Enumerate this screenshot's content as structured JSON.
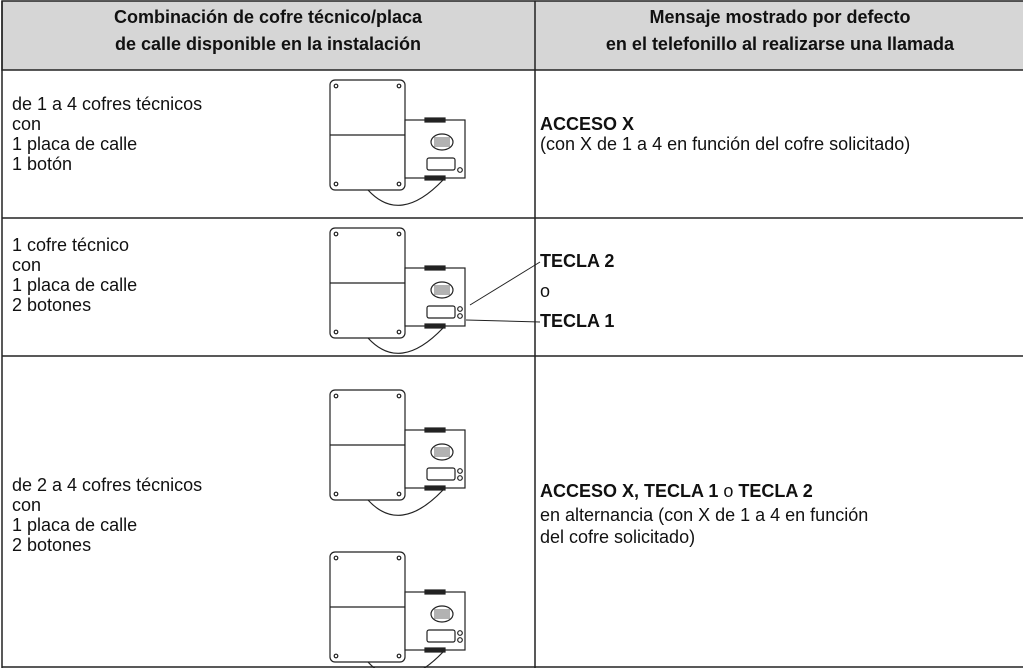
{
  "header": {
    "columns": [
      {
        "lines": [
          "Combinación de cofre técnico/placa",
          "de calle disponible en la instalación"
        ]
      },
      {
        "lines": [
          "Mensaje mostrado por defecto",
          "en el telefonillo al realizarse una llamada"
        ]
      }
    ]
  },
  "rows": [
    {
      "left": [
        "de 1 a 4 cofres técnicos",
        "con",
        "1 placa de calle",
        "1 botón"
      ],
      "right": [
        [
          {
            "text": "ACCESO X",
            "bold": true
          }
        ],
        [
          {
            "text": "(con X de 1 a 4 en función del cofre solicitado)",
            "bold": false
          }
        ]
      ]
    },
    {
      "left": [
        "1 cofre técnico",
        "con",
        "1 placa de calle",
        "2 botones"
      ],
      "right": [
        [
          {
            "text": "TECLA 2",
            "bold": true
          }
        ],
        [
          {
            "text": "o",
            "bold": false
          }
        ],
        [
          {
            "text": "TECLA 1",
            "bold": true
          }
        ]
      ]
    },
    {
      "left": [
        "de 2 a 4 cofres técnicos",
        "con",
        "1 placa de calle",
        "2 botones"
      ],
      "right": [
        [
          {
            "text": "ACCESO X, TECLA 1",
            "bold": true
          },
          {
            "text": " o ",
            "bold": false
          },
          {
            "text": "TECLA 2",
            "bold": true
          }
        ],
        [
          {
            "text": "en alternancia (con X de 1 a 4 en función",
            "bold": false
          }
        ],
        [
          {
            "text": "del cofre solicitado)",
            "bold": false
          }
        ]
      ]
    }
  ]
}
